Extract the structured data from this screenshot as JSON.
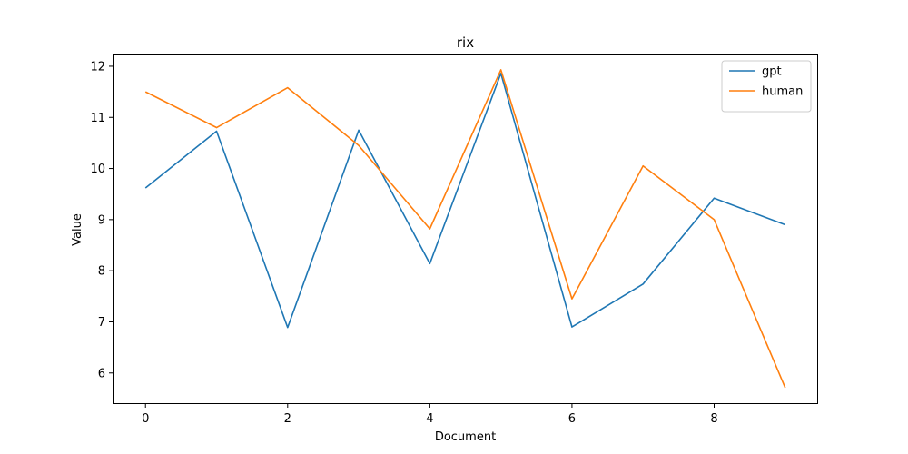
{
  "chart_data": {
    "type": "line",
    "title": "rix",
    "xlabel": "Document",
    "ylabel": "Value",
    "x": [
      0,
      1,
      2,
      3,
      4,
      5,
      6,
      7,
      8,
      9
    ],
    "xlim": [
      -0.45,
      9.45
    ],
    "ylim": [
      5.41,
      12.23
    ],
    "xticks": [
      0,
      2,
      4,
      6,
      8
    ],
    "yticks": [
      6,
      7,
      8,
      9,
      10,
      11,
      12
    ],
    "grid": false,
    "legend_position": "top-right",
    "series": [
      {
        "name": "gpt",
        "color": "#1f77b4",
        "values": [
          9.62,
          10.73,
          6.89,
          10.75,
          8.14,
          11.86,
          6.9,
          7.74,
          9.42,
          8.9
        ]
      },
      {
        "name": "human",
        "color": "#ff7f0e",
        "values": [
          11.5,
          10.8,
          11.58,
          10.45,
          8.82,
          11.93,
          7.45,
          10.05,
          9.0,
          5.71
        ]
      }
    ]
  }
}
